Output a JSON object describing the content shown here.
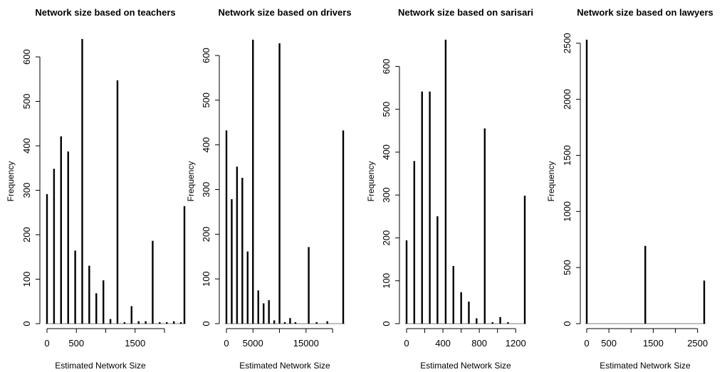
{
  "chart_data": [
    {
      "type": "bar",
      "title": "Network size based on teachers",
      "xlabel": "Estimated Network Size",
      "ylabel": "Frequency",
      "xlim": [
        0,
        2340
      ],
      "ylim": [
        0,
        640
      ],
      "x_ticks": [
        0,
        500,
        1500
      ],
      "x_minor_ticks": [
        1000,
        2000
      ],
      "y_ticks": [
        0,
        100,
        200,
        300,
        400,
        500,
        600
      ],
      "grid": false,
      "bars": [
        {
          "x": 0,
          "value": 291
        },
        {
          "x": 120,
          "value": 348
        },
        {
          "x": 240,
          "value": 421
        },
        {
          "x": 360,
          "value": 387
        },
        {
          "x": 480,
          "value": 164
        },
        {
          "x": 600,
          "value": 640
        },
        {
          "x": 720,
          "value": 130
        },
        {
          "x": 840,
          "value": 68
        },
        {
          "x": 960,
          "value": 97
        },
        {
          "x": 1080,
          "value": 10
        },
        {
          "x": 1200,
          "value": 547
        },
        {
          "x": 1320,
          "value": 3
        },
        {
          "x": 1440,
          "value": 39
        },
        {
          "x": 1560,
          "value": 5
        },
        {
          "x": 1680,
          "value": 5
        },
        {
          "x": 1800,
          "value": 186
        },
        {
          "x": 1920,
          "value": 3
        },
        {
          "x": 2040,
          "value": 3
        },
        {
          "x": 2160,
          "value": 5
        },
        {
          "x": 2280,
          "value": 3
        },
        {
          "x": 2340,
          "value": 264
        }
      ]
    },
    {
      "type": "bar",
      "title": "Network size based on drivers",
      "xlabel": "Estimated Network Size",
      "ylabel": "Frequency",
      "xlim": [
        0,
        22000
      ],
      "ylim": [
        0,
        635
      ],
      "x_ticks": [
        0,
        5000,
        15000
      ],
      "x_minor_ticks": [
        10000,
        20000
      ],
      "y_ticks": [
        0,
        100,
        200,
        300,
        400,
        500,
        600
      ],
      "grid": false,
      "bars": [
        {
          "x": 0,
          "value": 432
        },
        {
          "x": 1000,
          "value": 278
        },
        {
          "x": 2000,
          "value": 351
        },
        {
          "x": 3000,
          "value": 326
        },
        {
          "x": 4000,
          "value": 161
        },
        {
          "x": 5000,
          "value": 635
        },
        {
          "x": 6000,
          "value": 74
        },
        {
          "x": 7000,
          "value": 45
        },
        {
          "x": 8000,
          "value": 52
        },
        {
          "x": 9000,
          "value": 7
        },
        {
          "x": 10000,
          "value": 627
        },
        {
          "x": 11000,
          "value": 3
        },
        {
          "x": 12000,
          "value": 12
        },
        {
          "x": 13000,
          "value": 3
        },
        {
          "x": 15500,
          "value": 171
        },
        {
          "x": 17000,
          "value": 3
        },
        {
          "x": 19000,
          "value": 5
        },
        {
          "x": 22000,
          "value": 432
        }
      ]
    },
    {
      "type": "bar",
      "title": "Network size based on sarisari",
      "xlabel": "Estimated Network Size",
      "ylabel": "Frequency",
      "xlim": [
        0,
        1300
      ],
      "ylim": [
        0,
        662
      ],
      "x_ticks": [
        0,
        400,
        800,
        1200
      ],
      "x_minor_ticks": [
        200,
        600,
        1000
      ],
      "y_ticks": [
        0,
        100,
        200,
        300,
        400,
        500,
        600
      ],
      "grid": false,
      "bars": [
        {
          "x": 0,
          "value": 194
        },
        {
          "x": 85,
          "value": 379
        },
        {
          "x": 170,
          "value": 541
        },
        {
          "x": 255,
          "value": 541
        },
        {
          "x": 340,
          "value": 250
        },
        {
          "x": 430,
          "value": 662
        },
        {
          "x": 515,
          "value": 134
        },
        {
          "x": 600,
          "value": 73
        },
        {
          "x": 685,
          "value": 51
        },
        {
          "x": 770,
          "value": 12
        },
        {
          "x": 860,
          "value": 455
        },
        {
          "x": 945,
          "value": 3
        },
        {
          "x": 1030,
          "value": 15
        },
        {
          "x": 1115,
          "value": 3
        },
        {
          "x": 1300,
          "value": 298
        }
      ]
    },
    {
      "type": "bar",
      "title": "Network size based on lawyers",
      "xlabel": "Estimated Network Size",
      "ylabel": "Frequency",
      "xlim": [
        0,
        2650
      ],
      "ylim": [
        0,
        2530
      ],
      "x_ticks": [
        0,
        500,
        1500,
        2500
      ],
      "x_minor_ticks": [
        1000,
        2000
      ],
      "y_ticks": [
        0,
        500,
        1000,
        1500,
        2000,
        2500
      ],
      "grid": false,
      "bars": [
        {
          "x": 0,
          "value": 2530
        },
        {
          "x": 1320,
          "value": 692
        },
        {
          "x": 2650,
          "value": 383
        }
      ]
    }
  ]
}
